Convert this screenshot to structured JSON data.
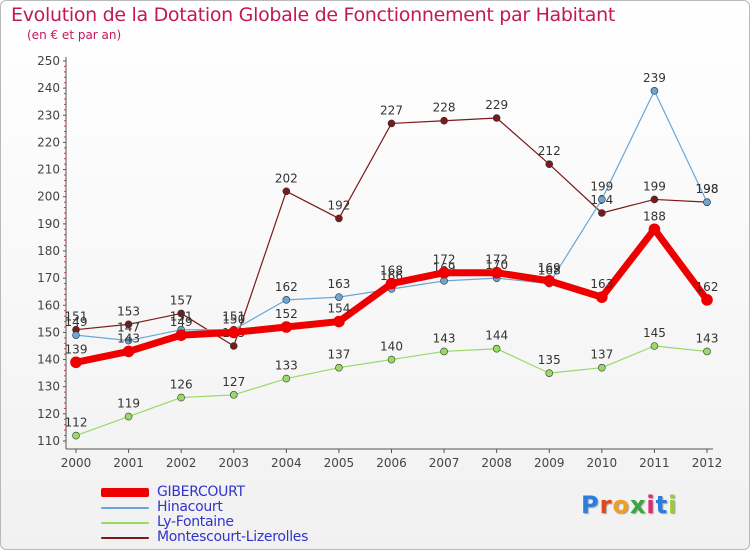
{
  "chart_data": {
    "type": "line",
    "title": "Evolution de la Dotation Globale de Fonctionnement par Habitant",
    "subtitle": "(en € et par an)",
    "xlabel": "",
    "ylabel": "",
    "ylim": [
      110,
      250
    ],
    "y_ticks": [
      "110",
      "120",
      "130",
      "140",
      "150",
      "160",
      "170",
      "180",
      "190",
      "200",
      "210",
      "220",
      "230",
      "240",
      "250"
    ],
    "categories": [
      "2000",
      "2001",
      "2002",
      "2003",
      "2004",
      "2005",
      "2006",
      "2007",
      "2008",
      "2009",
      "2010",
      "2011",
      "2012"
    ],
    "series": [
      {
        "name": "Montescourt-Lizerolles",
        "color": "#7b1a1a",
        "width": 1.2,
        "values": [
          151,
          153,
          157,
          145,
          202,
          192,
          227,
          228,
          229,
          212,
          194,
          199,
          198
        ],
        "labels": [
          "151",
          "153",
          "157",
          "145",
          "202",
          "192",
          "227",
          "228",
          "229",
          "212",
          "194",
          "199",
          "198"
        ]
      },
      {
        "name": "Ly-Fontaine",
        "color": "#99d966",
        "width": 1.2,
        "values": [
          112,
          119,
          126,
          127,
          133,
          137,
          140,
          143,
          144,
          135,
          137,
          145,
          143
        ],
        "labels": [
          "112",
          "119",
          "126",
          "127",
          "133",
          "137",
          "140",
          "143",
          "144",
          "135",
          "137",
          "145",
          "143"
        ]
      },
      {
        "name": "Hinacourt",
        "color": "#6aa6d6",
        "width": 1.2,
        "values": [
          149,
          147,
          151,
          151,
          162,
          163,
          166,
          169,
          170,
          168,
          199,
          239,
          198
        ],
        "labels": [
          "149",
          "147",
          "151",
          "151",
          "162",
          "163",
          "166",
          "169",
          "170",
          "168",
          "199",
          "239",
          "198"
        ]
      },
      {
        "name": "GIBERCOURT",
        "color": "#ee0000",
        "width": 7,
        "values": [
          139,
          143,
          149,
          150,
          152,
          154,
          168,
          172,
          172,
          169,
          163,
          188,
          162
        ],
        "labels": [
          "139",
          "143",
          "149",
          "150",
          "152",
          "154",
          "168",
          "172",
          "172",
          "169",
          "163",
          "188",
          "162"
        ]
      }
    ],
    "legend": [
      "GIBERCOURT",
      "Hinacourt",
      "Ly-Fontaine",
      "Montescourt-Lizerolles"
    ],
    "legend_position": "bottom-left",
    "grid": false
  },
  "brand": {
    "letters": [
      "P",
      "r",
      "o",
      "x",
      "i",
      "t",
      "i"
    ],
    "colors": [
      "#2b7de0",
      "#e04a1a",
      "#f0a020",
      "#3aa640",
      "#e02a70",
      "#2b7de0",
      "#9acd32"
    ]
  }
}
